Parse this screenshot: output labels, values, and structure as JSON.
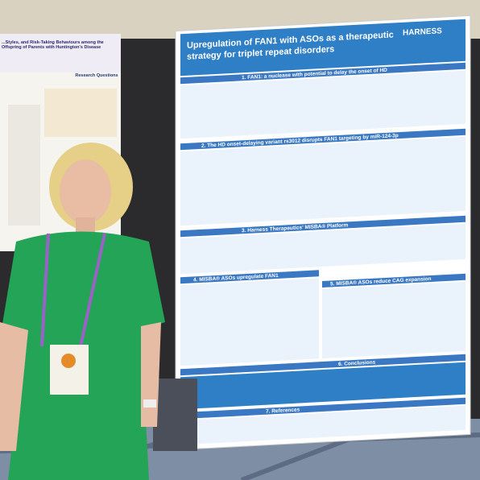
{
  "left_poster": {
    "title": "...Styles, and Risk-Taking Behaviours among the Offspring of Parents with Huntington's Disease",
    "heading": "Research Questions"
  },
  "poster": {
    "title_line1": "Upregulation of FAN1 with ASOs as a therapeutic",
    "title_line2": "strategy for triplet repeat disorders",
    "logo": "HARNESS",
    "sections": [
      "1. FAN1: a nuclease with potential to delay the onset of HD",
      "2. The HD onset-delaying variant rs3012 disrupts FAN1 targeting by miR-124-3p",
      "3. Harness Therapeutics' MISBA® Platform",
      "4. MISBA® ASOs upregulate FAN1",
      "5. MISBA® ASOs reduce CAG expansion",
      "6. Conclusions",
      "7. References"
    ]
  }
}
